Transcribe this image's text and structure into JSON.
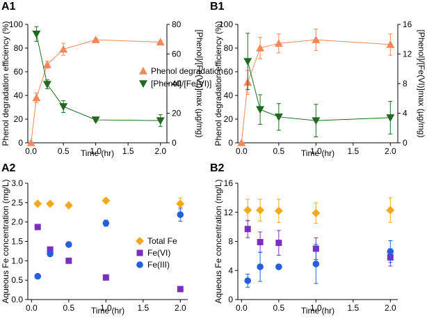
{
  "colors": {
    "phenol": "#F4885A",
    "ratio": "#1E6B1E",
    "total_fe": "#F5A81C",
    "fe6": "#7B2FBE",
    "fe3": "#2460DC"
  },
  "chart_data": [
    {
      "id": "A1",
      "panel_label": "A1",
      "type": "line",
      "xlabel": "Time (hr)",
      "ylabel": "Phenol degradation efficiency (%)",
      "ylabel_right": "[Phenol]/[Fe(VI)]max (µg/mg)",
      "xlim": [
        -0.05,
        2.1
      ],
      "ylim": [
        0,
        100
      ],
      "ylim_right": [
        0,
        80
      ],
      "xticks": [
        0.0,
        0.5,
        1.0,
        1.5,
        2.0
      ],
      "xtick_labels": [
        "0.0",
        "0.5",
        "1.0",
        "1.5",
        "2.0"
      ],
      "yticks": [
        0,
        20,
        40,
        60,
        80,
        100
      ],
      "ytick_labels": [
        "0",
        "20",
        "40",
        "60",
        "80",
        "100"
      ],
      "yticks_right": [
        0,
        20,
        40,
        60,
        80
      ],
      "ytick_labels_right": [
        "0",
        "20",
        "40",
        "60",
        "80"
      ],
      "series": [
        {
          "name": "Phenol degradation",
          "marker": "triangle-up",
          "color": "#F4885A",
          "axis": "left",
          "line": true,
          "x": [
            0,
            0.083,
            0.25,
            0.5,
            1.0,
            2.0
          ],
          "y": [
            0,
            38,
            66,
            79,
            87,
            85
          ],
          "err": [
            0,
            4,
            3,
            5,
            1,
            1
          ]
        },
        {
          "name": "[Phenol]/[Fe(VI)]",
          "marker": "triangle-down",
          "color": "#1E6B1E",
          "axis": "right",
          "line": true,
          "x": [
            0.083,
            0.25,
            0.5,
            1.0,
            2.0
          ],
          "y": [
            73.5,
            39.5,
            24.5,
            15.5,
            15.0
          ],
          "err": [
            5,
            3,
            4,
            1,
            4
          ]
        }
      ],
      "legend": [
        "Phenol degradation",
        "[Phenol]/[Fe(VI)]"
      ]
    },
    {
      "id": "B1",
      "panel_label": "B1",
      "type": "line",
      "xlabel": "Time (hr)",
      "ylabel": "Phenol degradation efficiency (%)",
      "ylabel_right": "[Phenol]/[Fe(VI)]max (µg/mg)",
      "xlim": [
        -0.05,
        2.1
      ],
      "ylim": [
        0,
        100
      ],
      "ylim_right": [
        0,
        16
      ],
      "xticks": [
        0.0,
        0.5,
        1.0,
        1.5,
        2.0
      ],
      "xtick_labels": [
        "0.0",
        "0.5",
        "1.0",
        "1.5",
        "2.0"
      ],
      "yticks": [
        0,
        20,
        40,
        60,
        80,
        100
      ],
      "ytick_labels": [
        "0",
        "20",
        "40",
        "60",
        "80",
        "100"
      ],
      "yticks_right": [
        0,
        4,
        8,
        12,
        16
      ],
      "ytick_labels_right": [
        "0",
        "4",
        "8",
        "12",
        "16"
      ],
      "series": [
        {
          "name": "Phenol degradation",
          "marker": "triangle-up",
          "color": "#F4885A",
          "axis": "left",
          "line": true,
          "x": [
            0,
            0.083,
            0.25,
            0.5,
            1.0,
            2.0
          ],
          "y": [
            0,
            51,
            80,
            84,
            87,
            83
          ],
          "err": [
            0,
            10,
            9,
            8,
            9,
            9
          ]
        },
        {
          "name": "[Phenol]/[Fe(VI)]",
          "marker": "triangle-down",
          "color": "#1E6B1E",
          "axis": "right",
          "line": true,
          "x": [
            0.083,
            0.25,
            0.5,
            1.0,
            2.0
          ],
          "y": [
            11.0,
            4.5,
            3.5,
            3.0,
            3.4
          ],
          "err": [
            3.8,
            2.0,
            1.8,
            2.2,
            2.2
          ]
        }
      ]
    },
    {
      "id": "A2",
      "panel_label": "A2",
      "type": "scatter",
      "xlabel": "Time (hr)",
      "ylabel": "Aqueous Fe concentration (mg/L)",
      "xlim": [
        -0.05,
        2.1
      ],
      "ylim": [
        0,
        3.0
      ],
      "xticks": [
        0.0,
        0.5,
        1.0,
        1.5,
        2.0
      ],
      "xtick_labels": [
        "0.0",
        "0.5",
        "1.0",
        "1.5",
        "2.0"
      ],
      "yticks": [
        0,
        0.5,
        1.0,
        1.5,
        2.0,
        2.5,
        3.0
      ],
      "ytick_labels": [
        "0.0",
        "0.5",
        "1.0",
        "1.5",
        "2.0",
        "2.5",
        "3.0"
      ],
      "series": [
        {
          "name": "Total Fe",
          "marker": "diamond",
          "color": "#F5A81C",
          "x": [
            0.083,
            0.25,
            0.5,
            1.0,
            2.0
          ],
          "y": [
            2.47,
            2.47,
            2.43,
            2.55,
            2.47
          ],
          "err": [
            0,
            0,
            0,
            0.05,
            0.15
          ]
        },
        {
          "name": "Fe(VI)",
          "marker": "square",
          "color": "#7B2FBE",
          "x": [
            0.083,
            0.25,
            0.5,
            1.0,
            2.0
          ],
          "y": [
            1.87,
            1.29,
            1.0,
            0.57,
            0.27
          ],
          "err": [
            0,
            0.06,
            0,
            0,
            0
          ]
        },
        {
          "name": "Fe(III)",
          "marker": "circle",
          "color": "#2460DC",
          "x": [
            0.083,
            0.25,
            0.5,
            1.0,
            2.0
          ],
          "y": [
            0.6,
            1.18,
            1.42,
            1.97,
            2.19
          ],
          "err": [
            0.05,
            0.06,
            0,
            0.08,
            0.17
          ]
        }
      ],
      "legend": [
        "Total Fe",
        "Fe(VI)",
        "Fe(III)"
      ]
    },
    {
      "id": "B2",
      "panel_label": "B2",
      "type": "scatter",
      "xlabel": "Time (hr)",
      "ylabel": "Aqueous Fe concentration (mg/L)",
      "xlim": [
        -0.05,
        2.1
      ],
      "ylim": [
        0,
        16
      ],
      "xticks": [
        0.0,
        0.5,
        1.0,
        1.5,
        2.0
      ],
      "xtick_labels": [
        "0.0",
        "0.5",
        "1.0",
        "1.5",
        "2.0"
      ],
      "yticks": [
        0,
        4,
        8,
        12,
        16
      ],
      "ytick_labels": [
        "0",
        "4",
        "8",
        "12",
        "16"
      ],
      "series": [
        {
          "name": "Total Fe",
          "marker": "diamond",
          "color": "#F5A81C",
          "x": [
            0.083,
            0.25,
            0.5,
            1.0,
            2.0
          ],
          "y": [
            12.3,
            12.3,
            12.2,
            11.9,
            12.3
          ],
          "err": [
            1.5,
            1.5,
            1.6,
            1.4,
            1.7
          ]
        },
        {
          "name": "Fe(VI)",
          "marker": "square",
          "color": "#7B2FBE",
          "x": [
            0.083,
            0.25,
            0.5,
            1.0,
            2.0
          ],
          "y": [
            9.7,
            7.9,
            7.8,
            7.0,
            5.8
          ],
          "err": [
            1.2,
            1.4,
            1.7,
            1.5,
            1.2
          ]
        },
        {
          "name": "Fe(III)",
          "marker": "circle",
          "color": "#2460DC",
          "x": [
            0.083,
            0.25,
            0.5,
            1.0,
            2.0
          ],
          "y": [
            2.6,
            4.5,
            4.5,
            4.9,
            6.6
          ],
          "err": [
            0.9,
            2.0,
            0,
            2.7,
            1.5
          ]
        }
      ]
    }
  ]
}
